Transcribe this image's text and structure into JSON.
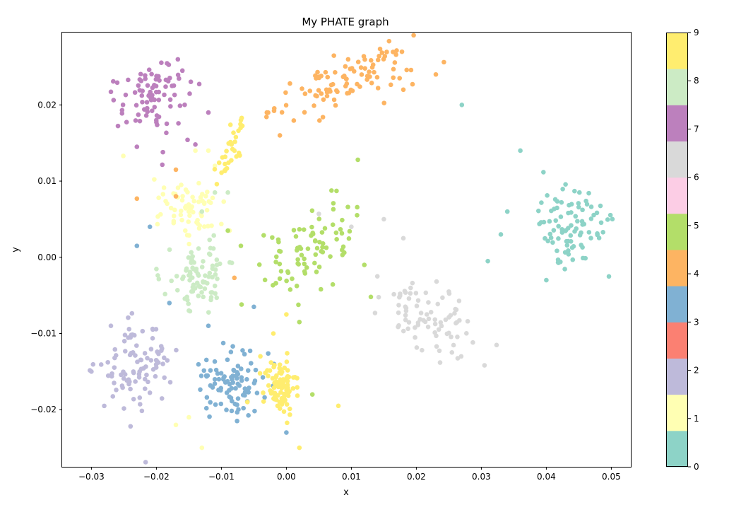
{
  "chart_data": {
    "type": "scatter",
    "title": "My PHATE graph",
    "xlabel": "x",
    "ylabel": "y",
    "xlim": [
      -0.0345,
      0.053
    ],
    "ylim": [
      -0.0275,
      0.0295
    ],
    "x_ticks": [
      -0.03,
      -0.02,
      -0.01,
      0.0,
      0.01,
      0.02,
      0.03,
      0.04,
      0.05
    ],
    "x_tick_labels": [
      "−0.03",
      "−0.02",
      "−0.01",
      "0.00",
      "0.01",
      "0.02",
      "0.03",
      "0.04",
      "0.05"
    ],
    "y_ticks": [
      -0.02,
      -0.01,
      0.0,
      0.01,
      0.02
    ],
    "y_tick_labels": [
      "−0.02",
      "−0.01",
      "0.00",
      "0.01",
      "0.02"
    ],
    "grid": false,
    "colorbar": {
      "colormap": "Set3",
      "range": [
        0,
        9
      ],
      "tick_labels": [
        "0",
        "1",
        "2",
        "3",
        "4",
        "5",
        "6",
        "7",
        "8",
        "9"
      ],
      "colors": [
        "#8dd3c7",
        "#ffffb3",
        "#bebada",
        "#fb8072",
        "#80b1d3",
        "#fdb462",
        "#b3de69",
        "#fccde5",
        "#d9d9d9",
        "#bc80bd",
        "#ccebc5",
        "#ffed6f"
      ]
    },
    "clusters": [
      {
        "label": 0,
        "center": [
          0.044,
          0.004
        ],
        "spread": [
          0.003,
          0.003
        ],
        "tilt": -0.6,
        "n": 90,
        "color": "#8dd3c7",
        "extra": [
          [
            0.027,
            0.02
          ],
          [
            0.036,
            0.014
          ],
          [
            0.034,
            0.006
          ],
          [
            0.031,
            -0.0005
          ],
          [
            0.04,
            -0.003
          ],
          [
            0.033,
            0.003
          ]
        ]
      },
      {
        "label": 1,
        "center": [
          -0.015,
          0.0065
        ],
        "spread": [
          0.003,
          0.0024
        ],
        "tilt": -0.5,
        "n": 70,
        "color": "#ffffb3",
        "extra": [
          [
            -0.017,
            -0.022
          ],
          [
            -0.015,
            -0.021
          ],
          [
            -0.013,
            -0.025
          ],
          [
            -0.012,
            0.014
          ],
          [
            -0.011,
            0.012
          ],
          [
            -0.014,
            0.014
          ]
        ]
      },
      {
        "label": 2,
        "center": [
          -0.023,
          -0.0145
        ],
        "spread": [
          0.0027,
          0.0028
        ],
        "tilt": 0.45,
        "n": 95,
        "color": "#bebada",
        "extra": [
          [
            -0.03,
            -0.015
          ],
          [
            -0.027,
            -0.009
          ],
          [
            -0.019,
            -0.014
          ]
        ]
      },
      {
        "label": 3,
        "center": [
          -0.008,
          -0.0165
        ],
        "spread": [
          0.0024,
          0.0024
        ],
        "tilt": -0.4,
        "n": 95,
        "color": "#80b1d3",
        "extra": [
          [
            -0.023,
            0.0015
          ],
          [
            -0.021,
            0.004
          ],
          [
            -0.018,
            -0.006
          ],
          [
            -0.005,
            -0.0065
          ],
          [
            0.0,
            -0.023
          ],
          [
            -0.012,
            -0.009
          ]
        ]
      },
      {
        "label": 4,
        "center": [
          0.009,
          0.023
        ],
        "spread": [
          0.0055,
          0.0015
        ],
        "tilt": 0.28,
        "n": 100,
        "color": "#fdb462",
        "extra": [
          [
            0.023,
            0.024
          ],
          [
            0.018,
            0.022
          ],
          [
            -0.001,
            0.016
          ],
          [
            -0.003,
            0.019
          ],
          [
            -0.017,
            0.0115
          ],
          [
            -0.023,
            0.0077
          ],
          [
            -0.017,
            0.008
          ],
          [
            -0.008,
            -0.0027
          ]
        ]
      },
      {
        "label": 5,
        "center": [
          0.0035,
          0.0005
        ],
        "spread": [
          0.0028,
          0.0045
        ],
        "tilt": -1.0,
        "n": 85,
        "color": "#b3de69",
        "extra": [
          [
            0.011,
            0.0128
          ],
          [
            0.013,
            -0.0052
          ],
          [
            0.012,
            -0.001
          ],
          [
            0.004,
            -0.018
          ],
          [
            -0.007,
            0.0015
          ],
          [
            -0.009,
            0.0035
          ],
          [
            0.002,
            -0.0085
          ]
        ]
      },
      {
        "label": 6,
        "center": [
          0.022,
          -0.008
        ],
        "spread": [
          0.0035,
          0.0022
        ],
        "tilt": -0.6,
        "n": 80,
        "color": "#d9d9d9",
        "extra": [
          [
            0.005,
            0.0057
          ],
          [
            0.015,
            0.005
          ],
          [
            0.018,
            0.0025
          ],
          [
            0.01,
            0.004
          ],
          [
            0.014,
            -0.0025
          ],
          [
            0.025,
            -0.0045
          ]
        ]
      },
      {
        "label": 7,
        "center": [
          -0.0205,
          0.021
        ],
        "spread": [
          0.0025,
          0.0023
        ],
        "tilt": 0.3,
        "n": 85,
        "color": "#bc80bd",
        "extra": [
          [
            -0.016,
            0.0245
          ],
          [
            -0.012,
            0.019
          ],
          [
            -0.023,
            0.0145
          ],
          [
            -0.019,
            0.0138
          ],
          [
            -0.014,
            0.0148
          ]
        ]
      },
      {
        "label": 8,
        "center": [
          -0.0135,
          -0.0025
        ],
        "spread": [
          0.0024,
          0.0022
        ],
        "tilt": -0.85,
        "n": 85,
        "color": "#ccebc5",
        "extra": [
          [
            -0.015,
            -0.007
          ],
          [
            -0.009,
            0.0085
          ],
          [
            -0.011,
            0.0085
          ],
          [
            -0.013,
            0.006
          ]
        ]
      },
      {
        "label": 9,
        "center": [
          -0.001,
          -0.017
        ],
        "spread": [
          0.0012,
          0.0018
        ],
        "tilt": 0.0,
        "n": 95,
        "color": "#ffed6f",
        "extra": [
          [
            -0.008,
            0.014
          ],
          [
            -0.007,
            0.018
          ],
          [
            -0.002,
            -0.01
          ],
          [
            0.0,
            -0.0075
          ],
          [
            0.002,
            -0.025
          ],
          [
            0.008,
            -0.0195
          ],
          [
            -0.004,
            -0.013
          ],
          [
            -0.006,
            -0.019
          ]
        ],
        "arm": {
          "from": [
            -0.01,
            0.0105
          ],
          "to": [
            -0.0065,
            0.0185
          ],
          "n": 30
        }
      }
    ]
  }
}
